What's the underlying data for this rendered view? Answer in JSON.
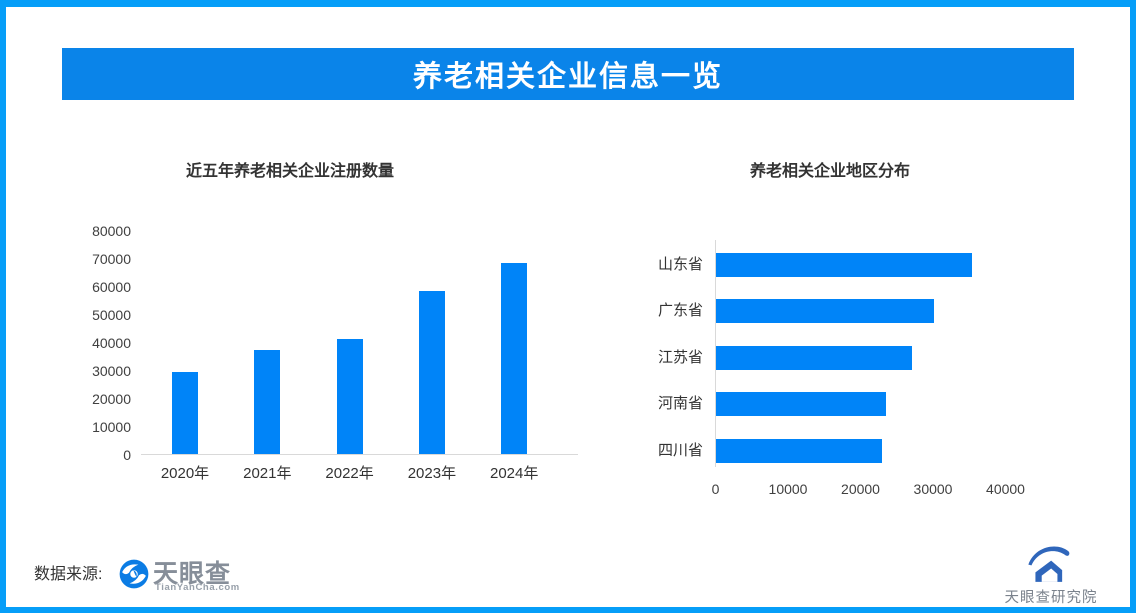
{
  "banner": {
    "title": "养老相关企业信息一览"
  },
  "footer": {
    "source_label": "数据来源:",
    "tianyancha": {
      "name": "天眼查",
      "domain": "TianYanCha.com"
    },
    "institute": "天眼查研究院"
  },
  "colors": {
    "accent_blue": "#0a84e9",
    "bar_blue": "#0084f8",
    "border_blue": "#069ef8",
    "axis_gray": "#d9d9d9",
    "text_dark": "#333333",
    "logo_gray": "#868e99",
    "institute_blue": "#2f66bb"
  },
  "chart_data": [
    {
      "type": "bar",
      "orientation": "vertical",
      "title": "近五年养老相关企业注册数量",
      "categories": [
        "2020年",
        "2021年",
        "2022年",
        "2023年",
        "2024年"
      ],
      "values": [
        29500,
        37400,
        41500,
        58500,
        68700
      ],
      "xlabel": "",
      "ylabel": "",
      "ylim": [
        0,
        80000
      ],
      "yticks": [
        0,
        10000,
        20000,
        30000,
        40000,
        50000,
        60000,
        70000,
        80000
      ],
      "grid": false,
      "legend": false
    },
    {
      "type": "bar",
      "orientation": "horizontal",
      "title": "养老相关企业地区分布",
      "categories": [
        "山东省",
        "广东省",
        "江苏省",
        "河南省",
        "四川省"
      ],
      "values": [
        35300,
        30100,
        27000,
        23500,
        22900
      ],
      "xlabel": "",
      "ylabel": "",
      "xlim": [
        0,
        40000
      ],
      "xticks": [
        0,
        10000,
        20000,
        30000,
        40000
      ],
      "grid": false,
      "legend": false
    }
  ]
}
